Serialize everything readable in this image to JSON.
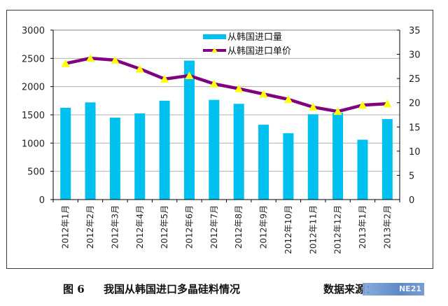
{
  "chart_data": {
    "type": "bar",
    "title": "",
    "categories": [
      "2012年1月",
      "2012年2月",
      "2012年3月",
      "2012年4月",
      "2012年5月",
      "2012年6月",
      "2012年7月",
      "2012年8月",
      "2012年9月",
      "2012年10月",
      "2012年11月",
      "2012年12月",
      "2013年1月",
      "2013年2月"
    ],
    "series": [
      {
        "name": "从韩国进口量",
        "type": "bar",
        "axis": "left",
        "color": "#00c0f0",
        "values": [
          1625,
          1720,
          1450,
          1525,
          1750,
          2460,
          1765,
          1695,
          1325,
          1175,
          1510,
          1535,
          1060,
          1425
        ]
      },
      {
        "name": "从韩国进口单价",
        "type": "line",
        "axis": "right",
        "color": "#800080",
        "marker": "triangle",
        "marker_color": "#ffff00",
        "values": [
          28.1,
          29.2,
          28.8,
          27.0,
          24.9,
          25.6,
          23.9,
          22.9,
          21.8,
          20.7,
          19.1,
          18.2,
          19.5,
          19.8
        ]
      }
    ],
    "y_left": {
      "ylim": [
        0,
        3000
      ],
      "ticks": [
        0,
        500,
        1000,
        1500,
        2000,
        2500,
        3000
      ]
    },
    "y_right": {
      "ylim": [
        0,
        35
      ],
      "ticks": [
        0,
        5,
        10,
        15,
        20,
        25,
        30,
        35
      ]
    },
    "xlabel": "",
    "ylabel": "",
    "grid": true,
    "legend": "top-right"
  },
  "caption": {
    "figure_label": "图 6",
    "title": "我国从韩国进口多晶硅料情况",
    "source": "数据来源："
  },
  "watermark": "NE21"
}
